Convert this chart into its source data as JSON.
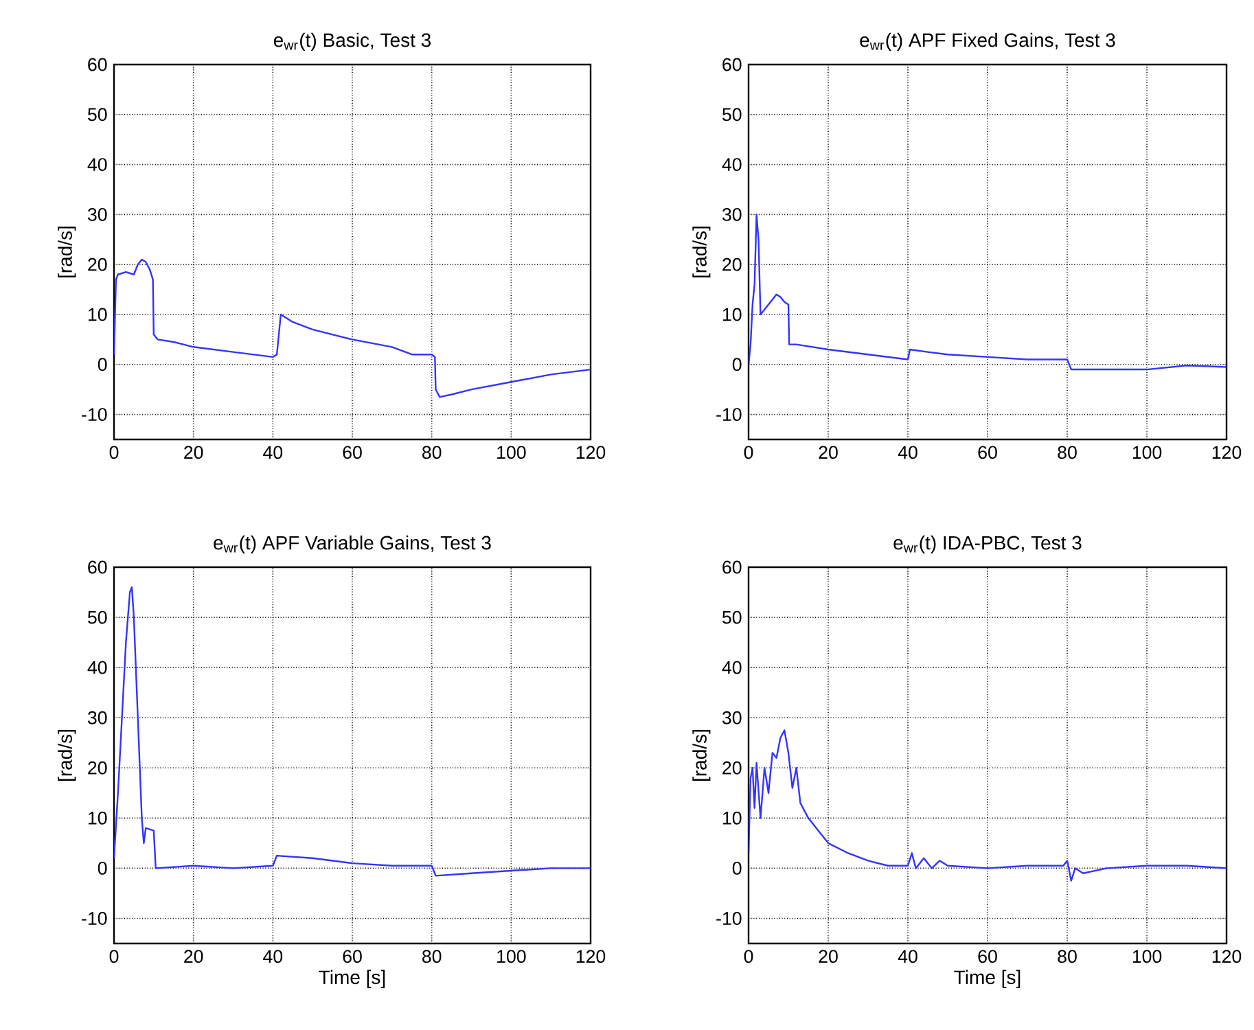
{
  "chart_data": [
    {
      "type": "line",
      "title": "e$_{wr}$(t) Basic, Test 3",
      "ylabel": "[rad/s]",
      "xlim": [
        0,
        120
      ],
      "ylim": [
        -15,
        60
      ],
      "xticks": [
        0,
        20,
        40,
        60,
        80,
        100,
        120
      ],
      "yticks": [
        -10,
        0,
        10,
        20,
        30,
        40,
        50,
        60
      ],
      "grid": true,
      "color": "#3333ff",
      "x": [
        0,
        0.5,
        1,
        3,
        5,
        6,
        7,
        8,
        9,
        9.8,
        10,
        11,
        15,
        20,
        30,
        35,
        40,
        41,
        42,
        45,
        50,
        60,
        70,
        75,
        80,
        80.8,
        81,
        82,
        85,
        90,
        100,
        110,
        120
      ],
      "values": [
        2,
        17,
        18,
        18.5,
        18,
        20,
        21,
        20.5,
        19,
        17,
        6,
        5,
        4.5,
        3.5,
        2.5,
        2,
        1.5,
        2,
        10,
        8.5,
        7,
        5,
        3.5,
        2,
        2,
        1.5,
        -5,
        -6.5,
        -6,
        -5,
        -3.5,
        -2,
        -1
      ]
    },
    {
      "type": "line",
      "title": "e$_{wr}$(t)  APF Fixed Gains, Test  3",
      "ylabel": "[rad/s]",
      "xlim": [
        0,
        120
      ],
      "ylim": [
        -15,
        60
      ],
      "xticks": [
        0,
        20,
        40,
        60,
        80,
        100,
        120
      ],
      "yticks": [
        -10,
        0,
        10,
        20,
        30,
        40,
        50,
        60
      ],
      "grid": true,
      "color": "#3333ff",
      "x": [
        0,
        0.5,
        1,
        1.5,
        2,
        2.5,
        3,
        4,
        6,
        7,
        8,
        9,
        10,
        10.2,
        12,
        20,
        30,
        40,
        40.5,
        45,
        50,
        60,
        70,
        80,
        81,
        90,
        100,
        110,
        120
      ],
      "values": [
        0,
        4,
        12,
        16,
        30,
        25,
        10,
        11,
        13,
        14,
        13.5,
        12.5,
        12,
        4,
        4,
        3,
        2,
        1,
        3,
        2.5,
        2,
        1.5,
        1,
        1,
        -1,
        -1,
        -1,
        -0.2,
        -0.5
      ]
    },
    {
      "type": "line",
      "title": "e$_{wr}$(t) APF Variable Gains, Test  3",
      "xlabel": "Time [s]",
      "ylabel": "[rad/s]",
      "xlim": [
        0,
        120
      ],
      "ylim": [
        -15,
        60
      ],
      "xticks": [
        0,
        20,
        40,
        60,
        80,
        100,
        120
      ],
      "yticks": [
        -10,
        0,
        10,
        20,
        30,
        40,
        50,
        60
      ],
      "grid": true,
      "color": "#3333ff",
      "x": [
        0,
        1,
        2,
        3,
        4,
        4.5,
        5,
        6,
        7,
        7.5,
        8,
        10,
        10.5,
        20,
        30,
        40,
        41,
        50,
        60,
        70,
        80,
        81,
        90,
        100,
        110,
        120
      ],
      "values": [
        2,
        15,
        30,
        45,
        55,
        56,
        50,
        30,
        10,
        5,
        8,
        7.5,
        0,
        0.5,
        0,
        0.5,
        2.5,
        2,
        1,
        0.5,
        0.5,
        -1.5,
        -1,
        -0.5,
        0,
        0
      ]
    },
    {
      "type": "line",
      "title": "e$_{wr}$(t) IDA-PBC, Test  3",
      "xlabel": "Time [s]",
      "ylabel": "[rad/s]",
      "xlim": [
        0,
        120
      ],
      "ylim": [
        -15,
        60
      ],
      "xticks": [
        0,
        20,
        40,
        60,
        80,
        100,
        120
      ],
      "yticks": [
        -10,
        0,
        10,
        20,
        30,
        40,
        50,
        60
      ],
      "grid": true,
      "color": "#3333ff",
      "x": [
        0,
        0.5,
        1,
        1.5,
        2,
        3,
        4,
        5,
        6,
        7,
        8,
        9,
        10,
        11,
        12,
        13,
        15,
        18,
        20,
        25,
        30,
        35,
        40,
        41,
        42,
        44,
        46,
        48,
        50,
        60,
        70,
        79,
        80,
        81,
        82,
        84,
        90,
        100,
        110,
        120
      ],
      "values": [
        3,
        18,
        20,
        12,
        21,
        10,
        20,
        15,
        23,
        22,
        26,
        27.5,
        23,
        16,
        20,
        13,
        10,
        7,
        5,
        3,
        1.5,
        0.5,
        0.5,
        3,
        0,
        2,
        0,
        1.5,
        0.5,
        0,
        0.5,
        0.5,
        1.5,
        -2.5,
        0,
        -1,
        0,
        0.5,
        0.5,
        0
      ]
    }
  ]
}
